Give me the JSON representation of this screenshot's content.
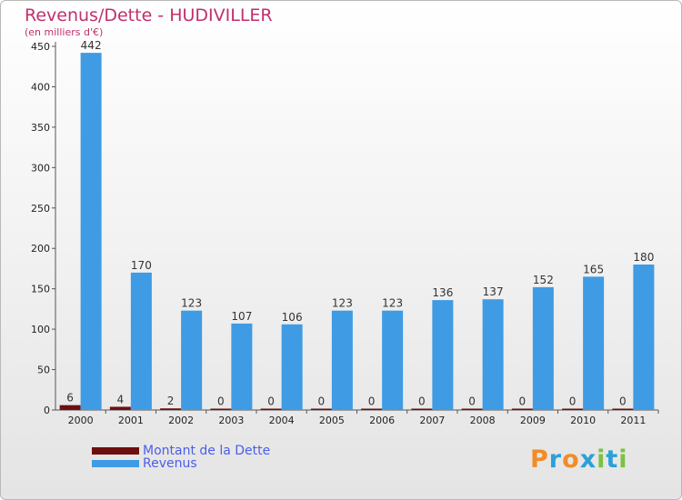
{
  "chart_data": {
    "type": "bar",
    "title": "Revenus/Dette - HUDIVILLER",
    "subtitle": "(en milliers d'€)",
    "categories": [
      "2000",
      "2001",
      "2002",
      "2003",
      "2004",
      "2005",
      "2006",
      "2007",
      "2008",
      "2009",
      "2010",
      "2011"
    ],
    "series": [
      {
        "name": "Montant de la Dette",
        "color": "#6e0f0f",
        "values": [
          6,
          4,
          2,
          0,
          0,
          0,
          0,
          0,
          0,
          0,
          0,
          0
        ]
      },
      {
        "name": "Revenus",
        "color": "#3f9be3",
        "values": [
          442,
          170,
          123,
          107,
          106,
          123,
          123,
          136,
          137,
          152,
          165,
          180
        ]
      }
    ],
    "ylim": [
      0,
      450
    ],
    "yticks": [
      0,
      50,
      100,
      150,
      200,
      250,
      300,
      350,
      400,
      450
    ],
    "grid": false,
    "legend": "bottom-left"
  },
  "logo": {
    "text": "Proxiti",
    "colors": [
      "#f28c28",
      "#2aa0d8",
      "#f28c28",
      "#2aa0d8",
      "#7cc242",
      "#2aa0d8",
      "#7cc242"
    ]
  }
}
